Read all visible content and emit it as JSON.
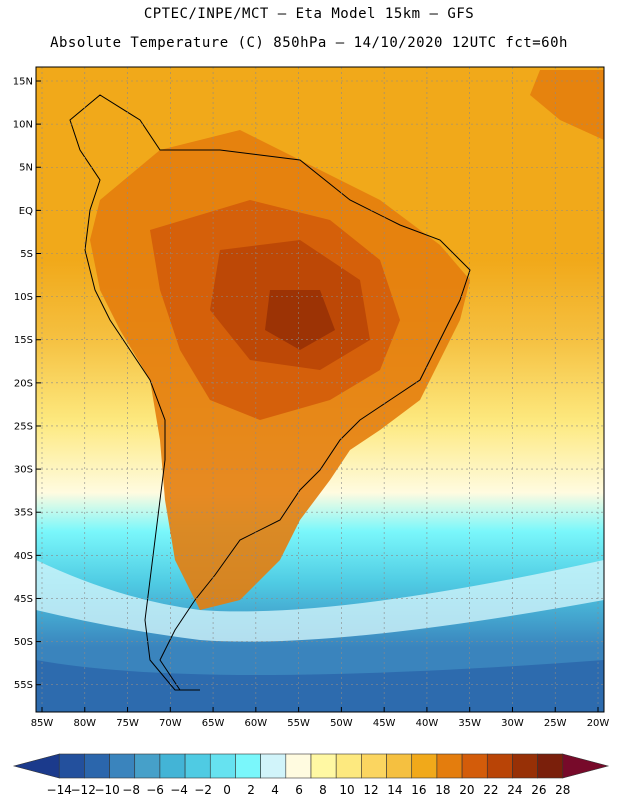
{
  "header": {
    "line1": "CPTEC/INPE/MCT –  Eta Model 15km – GFS",
    "line2": "Absolute Temperature (C) 850hPa – 14/10/2020 12UTC fct=60h"
  },
  "map": {
    "lat_labels": [
      "15N",
      "10N",
      "5N",
      "EQ",
      "5S",
      "10S",
      "15S",
      "20S",
      "25S",
      "30S",
      "35S",
      "40S",
      "45S",
      "50S",
      "55S"
    ],
    "lon_labels": [
      "85W",
      "80W",
      "75W",
      "70W",
      "65W",
      "60W",
      "55W",
      "50W",
      "45W",
      "40W",
      "35W",
      "30W",
      "25W",
      "20W"
    ],
    "lat_range": [
      15,
      -55
    ],
    "lon_range": [
      -85,
      -20
    ]
  },
  "colorbar": {
    "labels": [
      "-14",
      "-12",
      "-10",
      "-8",
      "-6",
      "-4",
      "-2",
      "0",
      "2",
      "4",
      "6",
      "8",
      "10",
      "12",
      "14",
      "16",
      "18",
      "20",
      "22",
      "24",
      "26",
      "28"
    ],
    "colors": [
      "#1b3a8c",
      "#23509d",
      "#2b66ac",
      "#3a84bd",
      "#46a0c9",
      "#43b4d6",
      "#4fcbe3",
      "#66e2f0",
      "#7af7fb",
      "#d1f4fa",
      "#fffbe0",
      "#fff8a3",
      "#fde97f",
      "#fbd560",
      "#f5c040",
      "#f1a91a",
      "#e47d0d",
      "#d35c0a",
      "#b94406",
      "#973006",
      "#7a1f0b",
      "#770a2a"
    ]
  },
  "icons": {
    "left_arrow": "triangle-left-icon",
    "right_arrow": "triangle-right-icon"
  }
}
